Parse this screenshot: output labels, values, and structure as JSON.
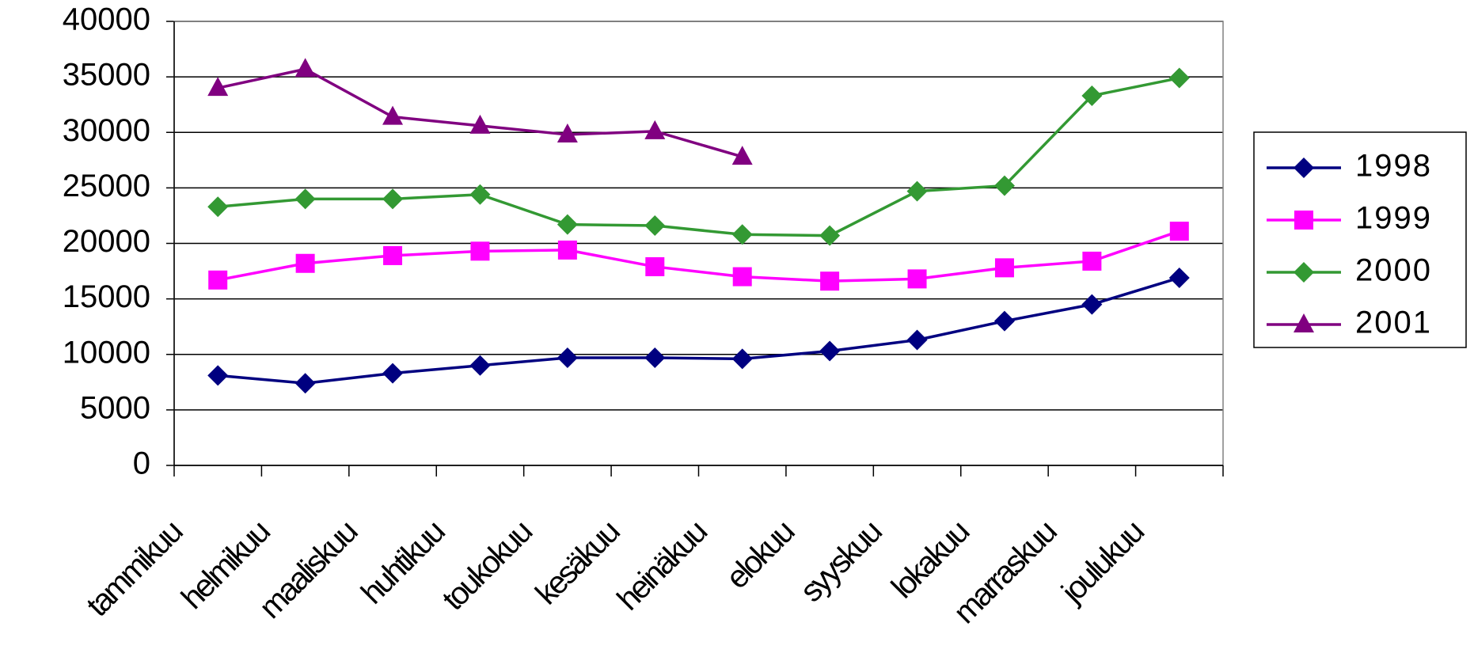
{
  "chart_data": {
    "type": "line",
    "categories": [
      "tammikuu",
      "helmikuu",
      "maaliskuu",
      "huhtikuu",
      "toukokuu",
      "kesäkuu",
      "heinäkuu",
      "elokuu",
      "syyskuu",
      "lokakuu",
      "marraskuu",
      "joulukuu"
    ],
    "series": [
      {
        "name": "1998",
        "color": "#000080",
        "marker": "diamond",
        "values": [
          8100,
          7400,
          8300,
          9000,
          9700,
          9700,
          9600,
          10300,
          11300,
          13000,
          14500,
          16900
        ]
      },
      {
        "name": "1999",
        "color": "#ff00ff",
        "marker": "square",
        "values": [
          16700,
          18200,
          18900,
          19300,
          19400,
          17900,
          17000,
          16600,
          16800,
          17800,
          18400,
          21100
        ]
      },
      {
        "name": "2000",
        "color": "#339933",
        "marker": "diamond",
        "values": [
          23300,
          24000,
          24000,
          24400,
          21700,
          21600,
          20800,
          20700,
          24700,
          25200,
          33300,
          34900
        ]
      },
      {
        "name": "2001",
        "color": "#800080",
        "marker": "triangle",
        "values": [
          34000,
          35700,
          31400,
          30600,
          29800,
          30100,
          27800,
          null,
          null,
          null,
          null,
          null
        ]
      }
    ],
    "ylim": [
      0,
      40000
    ],
    "yticks": [
      0,
      5000,
      10000,
      15000,
      20000,
      25000,
      30000,
      35000,
      40000
    ],
    "grid": true,
    "legend": "right"
  }
}
